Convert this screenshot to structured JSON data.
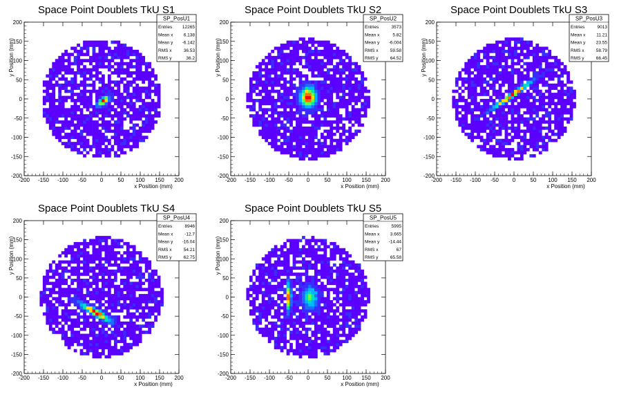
{
  "chart_data": [
    {
      "type": "heatmap",
      "title": "Space Point Doublets TkU S1",
      "xlabel": "x Position (mm)",
      "ylabel": "y Position (mm)",
      "xlim": [
        -200,
        200
      ],
      "ylim": [
        -200,
        200
      ],
      "xticks": [
        -200,
        -150,
        -100,
        -50,
        0,
        50,
        100,
        150,
        200
      ],
      "yticks": [
        -200,
        -150,
        -100,
        -50,
        0,
        50,
        100,
        150,
        200
      ],
      "stats": {
        "name": "SP_PosU1",
        "rows": [
          {
            "label": "Entries",
            "value": "12265"
          },
          {
            "label": "Mean x",
            "value": "6.138"
          },
          {
            "label": "Mean y",
            "value": "-6.142"
          },
          {
            "label": "RMS x",
            "value": "36.53"
          },
          {
            "label": "RMS y",
            "value": "36.2"
          }
        ]
      },
      "hotspots": [
        {
          "x": 5,
          "y": -5,
          "sx": 12,
          "sy": 6,
          "angle": 40,
          "peak": 1.0
        }
      ],
      "radius": 155
    },
    {
      "type": "heatmap",
      "title": "Space Point Doublets TkU S2",
      "xlabel": "x Position (mm)",
      "ylabel": "y Position (mm)",
      "xlim": [
        -200,
        200
      ],
      "ylim": [
        -200,
        200
      ],
      "xticks": [
        -200,
        -150,
        -100,
        -50,
        0,
        50,
        100,
        150,
        200
      ],
      "yticks": [
        -200,
        -150,
        -100,
        -50,
        0,
        50,
        100,
        150,
        200
      ],
      "stats": {
        "name": "SP_PosU2",
        "rows": [
          {
            "label": "Entries",
            "value": "3573"
          },
          {
            "label": "Mean x",
            "value": "5.82"
          },
          {
            "label": "Mean y",
            "value": "-6.004"
          },
          {
            "label": "RMS x",
            "value": "59.58"
          },
          {
            "label": "RMS y",
            "value": "64.52"
          }
        ]
      },
      "hotspots": [
        {
          "x": 0,
          "y": 5,
          "sx": 15,
          "sy": 18,
          "angle": 0,
          "peak": 1.0
        }
      ],
      "radius": 158
    },
    {
      "type": "heatmap",
      "title": "Space Point Doublets TkU S3",
      "xlabel": "x Position (mm)",
      "ylabel": "y Position (mm)",
      "xlim": [
        -200,
        200
      ],
      "ylim": [
        -200,
        200
      ],
      "xticks": [
        -200,
        -150,
        -100,
        -50,
        0,
        50,
        100,
        150,
        200
      ],
      "yticks": [
        -200,
        -150,
        -100,
        -50,
        0,
        50,
        100,
        150,
        200
      ],
      "stats": {
        "name": "SP_PosU3",
        "rows": [
          {
            "label": "Entries",
            "value": "9013"
          },
          {
            "label": "Mean x",
            "value": "11.21"
          },
          {
            "label": "Mean y",
            "value": "23.55"
          },
          {
            "label": "RMS x",
            "value": "58.79"
          },
          {
            "label": "RMS y",
            "value": "66.45"
          }
        ]
      },
      "hotspots": [
        {
          "x": -5,
          "y": 10,
          "sx": 45,
          "sy": 4,
          "angle": 35,
          "peak": 1.0
        }
      ],
      "radius": 158
    },
    {
      "type": "heatmap",
      "title": "Space Point Doublets TkU S4",
      "xlabel": "x Position (mm)",
      "ylabel": "y Position (mm)",
      "xlim": [
        -200,
        200
      ],
      "ylim": [
        -200,
        200
      ],
      "xticks": [
        -200,
        -150,
        -100,
        -50,
        0,
        50,
        100,
        150,
        200
      ],
      "yticks": [
        -200,
        -150,
        -100,
        -50,
        0,
        50,
        100,
        150,
        200
      ],
      "stats": {
        "name": "SP_PosU4",
        "rows": [
          {
            "label": "Entries",
            "value": "8946"
          },
          {
            "label": "Mean x",
            "value": "-12.7"
          },
          {
            "label": "Mean y",
            "value": "-16.04"
          },
          {
            "label": "RMS x",
            "value": "54.21"
          },
          {
            "label": "RMS y",
            "value": "62.75"
          }
        ]
      },
      "hotspots": [
        {
          "x": -15,
          "y": -40,
          "sx": 30,
          "sy": 6,
          "angle": -30,
          "peak": 1.0
        }
      ],
      "radius": 158
    },
    {
      "type": "heatmap",
      "title": "Space Point Doublets TkU S5",
      "xlabel": "x Position (mm)",
      "ylabel": "y Position (mm)",
      "xlim": [
        -200,
        200
      ],
      "ylim": [
        -200,
        200
      ],
      "xticks": [
        -200,
        -150,
        -100,
        -50,
        0,
        50,
        100,
        150,
        200
      ],
      "yticks": [
        -200,
        -150,
        -100,
        -50,
        0,
        50,
        100,
        150,
        200
      ],
      "stats": {
        "name": "SP_PosU5",
        "rows": [
          {
            "label": "Entries",
            "value": "5995"
          },
          {
            "label": "Mean x",
            "value": "3.665"
          },
          {
            "label": "Mean y",
            "value": "-14.44"
          },
          {
            "label": "RMS x",
            "value": "67"
          },
          {
            "label": "RMS y",
            "value": "65.58"
          }
        ]
      },
      "hotspots": [
        {
          "x": -50,
          "y": 0,
          "sx": 4,
          "sy": 25,
          "angle": 0,
          "peak": 1.0
        },
        {
          "x": 5,
          "y": 0,
          "sx": 14,
          "sy": 20,
          "angle": 0,
          "peak": 0.6
        }
      ],
      "radius": 158
    }
  ],
  "colors": {
    "background_bin": "#6a1fff",
    "palette": [
      "#5b00ff",
      "#3a2cff",
      "#1f6bff",
      "#00b4ff",
      "#00e0c0",
      "#6cff40",
      "#ffe000",
      "#ff7000",
      "#ff0000"
    ]
  }
}
